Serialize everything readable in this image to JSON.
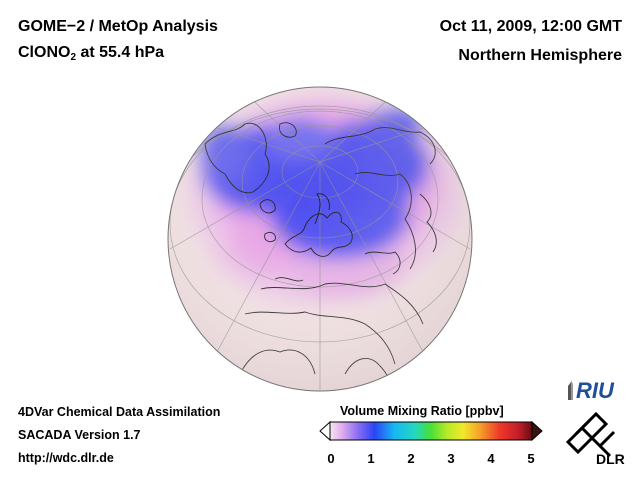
{
  "header": {
    "title_line1": "GOME−2 / MetOp Analysis",
    "title_line2_prefix": "ClONO",
    "title_line2_sub": "2",
    "title_line2_suffix": " at 55.4 hPa",
    "date": "Oct 11, 2009, 12:00 GMT",
    "hemisphere": "Northern Hemisphere"
  },
  "footer": {
    "line1": "4DVar Chemical Data Assimilation",
    "line2": "SACADA Version 1.7",
    "line3": "http://wdc.dlr.de"
  },
  "colorbar": {
    "title": "Volume Mixing Ratio [ppbv]",
    "ticks": [
      "0",
      "1",
      "2",
      "3",
      "4",
      "5"
    ],
    "range": [
      0,
      5
    ]
  },
  "logos": {
    "riu": "RIU",
    "dlr": "DLR"
  },
  "colors": {
    "background": "#ffffff",
    "globe_base": "#f5e4e6",
    "low_pink": "#f0c8ec",
    "mid_violet": "#e9a3e6",
    "high_blue": "#4a4cf0"
  }
}
